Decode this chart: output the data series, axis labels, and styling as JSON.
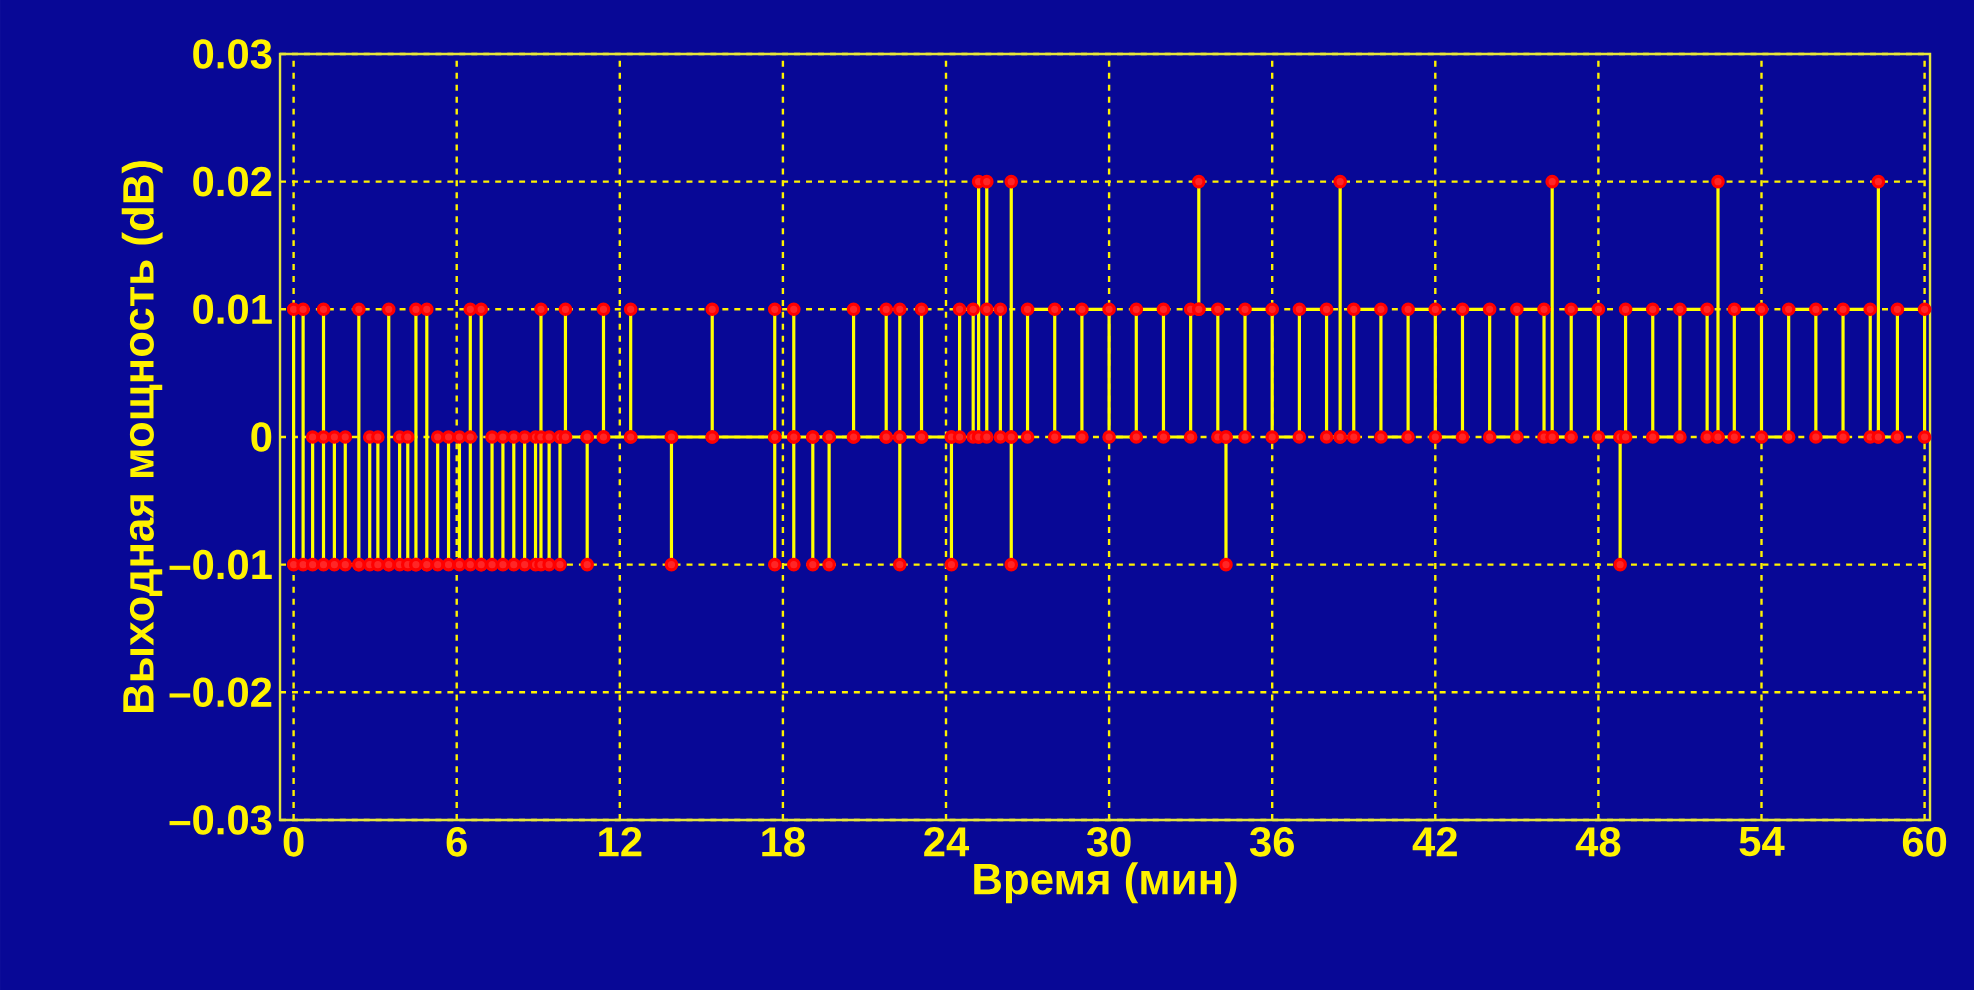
{
  "chart_data": {
    "type": "line",
    "xlabel": "Время (мин)",
    "ylabel": "Выходная мощность (dB)",
    "xlim": [
      -0.5,
      60.2
    ],
    "ylim": [
      -0.03,
      0.03
    ],
    "xticks": [
      0,
      6,
      12,
      18,
      24,
      30,
      36,
      42,
      48,
      54,
      60
    ],
    "yticks": [
      {
        "value": -0.03,
        "label": "–0.03"
      },
      {
        "value": -0.02,
        "label": "–0.02"
      },
      {
        "value": -0.01,
        "label": "–0.01"
      },
      0,
      0.01,
      0.02,
      0.03
    ],
    "grid": true,
    "marker": "circle",
    "line_style": "solid",
    "series": [
      {
        "color": "#ffff00",
        "x": [
          0,
          0,
          0.35,
          0.35,
          0.7,
          0.7,
          1.1,
          1.1,
          1.1,
          1.5,
          1.5,
          1.9,
          1.9,
          2.4,
          2.4,
          2.4,
          2.8,
          2.8,
          3.1,
          3.1,
          3.5,
          3.5,
          3.5,
          3.9,
          3.9,
          4.2,
          4.2,
          4.5,
          4.5,
          4.5,
          4.9,
          4.9,
          4.9,
          5.3,
          5.3,
          5.7,
          5.7,
          6.1,
          6.1,
          6.5,
          6.5,
          6.5,
          6.9,
          6.9,
          6.9,
          7.3,
          7.3,
          7.7,
          7.7,
          8.1,
          8.1,
          8.5,
          8.5,
          8.9,
          8.9,
          9.1,
          9.1,
          9.1,
          9.4,
          9.4,
          9.8,
          9.8,
          9.8,
          10.0,
          10.0,
          10.0,
          10.8,
          10.8,
          10.8,
          11.4,
          11.4,
          11.4,
          12.4,
          12.4,
          12.4,
          13.9,
          13.9,
          13.9,
          15.4,
          15.4,
          15.4,
          17.7,
          17.7,
          17.7,
          17.7,
          18.4,
          18.4,
          18.4,
          18.4,
          19.1,
          19.1,
          19.1,
          19.7,
          19.7,
          19.7,
          20.6,
          20.6,
          20.6,
          21.8,
          21.8,
          21.8,
          22.3,
          22.3,
          22.3,
          22.3,
          23.1,
          23.1,
          23.1,
          24.2,
          24.2,
          24.2,
          24.5,
          24.5,
          25.0,
          25.0,
          25.2,
          25.2,
          25.2,
          25.5,
          25.5,
          25.5,
          26.0,
          26.0,
          26.4,
          26.4,
          26.4,
          26.4,
          27,
          27,
          28,
          28,
          29,
          29,
          30,
          30,
          31,
          31,
          32,
          32,
          33,
          33,
          33.3,
          33.3,
          33.3,
          34,
          34,
          34.3,
          34.3,
          34.3,
          35,
          35,
          36,
          36,
          37,
          37,
          38,
          38,
          38.5,
          38.5,
          38.5,
          39,
          39,
          40,
          40,
          41,
          41,
          42,
          42,
          43,
          43,
          44,
          44,
          45,
          45,
          46,
          46,
          46.3,
          46.3,
          46.3,
          47,
          47,
          48,
          48,
          48.8,
          48.8,
          48.8,
          49,
          49,
          50,
          50,
          51,
          51,
          52,
          52,
          52.4,
          52.4,
          52.4,
          53,
          53,
          54,
          54,
          55,
          55,
          56,
          56,
          57,
          57,
          58,
          58,
          58.3,
          58.3,
          58.3,
          59,
          59,
          60,
          60
        ],
        "values": [
          -0.01,
          0.01,
          0.01,
          -0.01,
          -0.01,
          0,
          0,
          0.01,
          -0.01,
          -0.01,
          0,
          0,
          -0.01,
          -0.01,
          0.01,
          -0.01,
          -0.01,
          0,
          0,
          -0.01,
          -0.01,
          0.01,
          -0.01,
          -0.01,
          0,
          0,
          -0.01,
          -0.01,
          0.01,
          -0.01,
          -0.01,
          0.01,
          -0.01,
          -0.01,
          0,
          0,
          -0.01,
          -0.01,
          0,
          0,
          0.01,
          -0.01,
          -0.01,
          0.01,
          -0.01,
          -0.01,
          0,
          0,
          -0.01,
          -0.01,
          0,
          0,
          -0.01,
          -0.01,
          0,
          0,
          0.01,
          -0.01,
          -0.01,
          0,
          0,
          -0.01,
          0,
          0,
          0.01,
          0,
          0,
          -0.01,
          0,
          0,
          0.01,
          0,
          0,
          0.01,
          0,
          0,
          -0.01,
          0,
          0,
          0.01,
          0,
          0,
          0.01,
          -0.01,
          0,
          0,
          -0.01,
          0.01,
          0,
          0,
          -0.01,
          0,
          0,
          -0.01,
          0,
          0,
          0.01,
          0,
          0,
          0.01,
          0,
          0,
          0.01,
          -0.01,
          0,
          0,
          0.01,
          0,
          0,
          -0.01,
          0,
          0,
          0.01,
          0.01,
          0,
          0,
          0.02,
          0,
          0,
          0.02,
          0.01,
          0.01,
          0,
          0,
          0.02,
          -0.01,
          0,
          0,
          0.01,
          0.01,
          0,
          0,
          0.01,
          0.01,
          0,
          0,
          0.01,
          0.01,
          0,
          0,
          0.01,
          0.01,
          0.02,
          0.01,
          0.01,
          0,
          0,
          -0.01,
          0,
          0,
          0.01,
          0.01,
          0,
          0,
          0.01,
          0.01,
          0,
          0,
          0.02,
          0,
          0,
          0.01,
          0.01,
          0,
          0,
          0.01,
          0.01,
          0,
          0,
          0.01,
          0.01,
          0,
          0,
          0.01,
          0.01,
          0,
          0,
          0.02,
          0,
          0,
          0.01,
          0.01,
          0,
          0,
          -0.01,
          0,
          0,
          0.01,
          0.01,
          0,
          0,
          0.01,
          0.01,
          0,
          0,
          0.02,
          0,
          0,
          0.01,
          0.01,
          0,
          0,
          0.01,
          0.01,
          0,
          0,
          0.01,
          0.01,
          0,
          0,
          0.02,
          0,
          0,
          0.01,
          0.01,
          0
        ]
      }
    ]
  }
}
